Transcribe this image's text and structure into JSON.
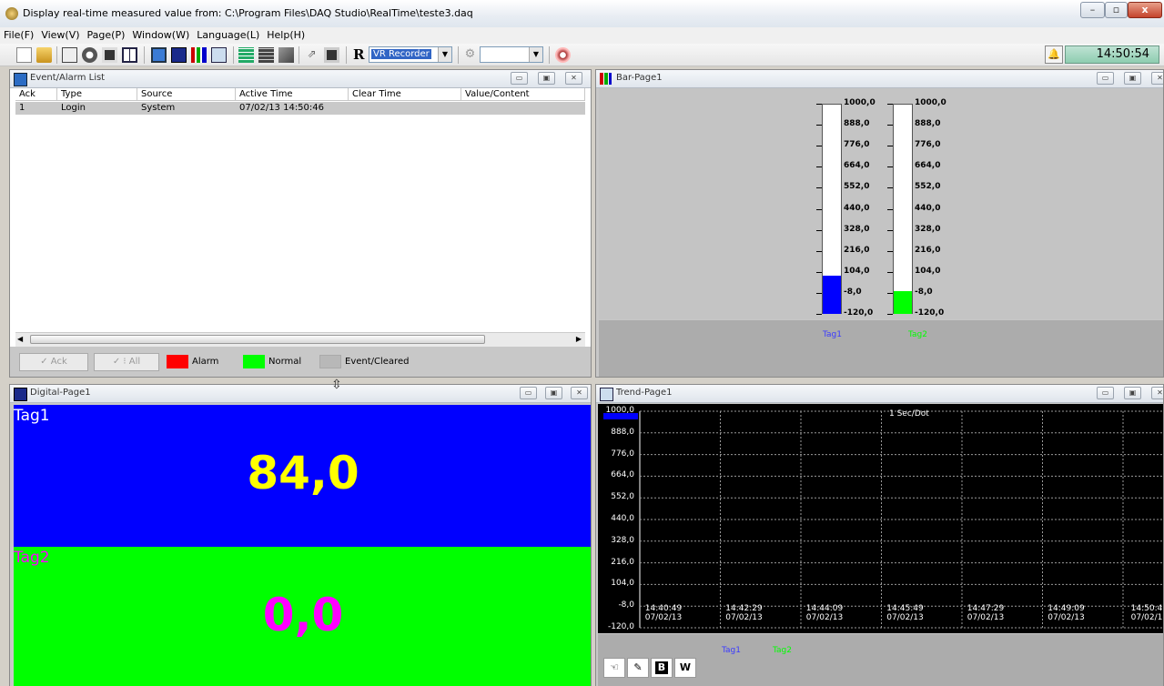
{
  "window": {
    "title": "Display real-time measured value from: C:\\Program Files\\DAQ Studio\\RealTime\\teste3.daq"
  },
  "menu": [
    "File(F)",
    "View(V)",
    "Page(P)",
    "Window(W)",
    "Language(L)",
    "Help(H)"
  ],
  "toolbar": {
    "recorder_label": "R",
    "recorder_combo": "VR Recorder",
    "second_combo": "",
    "clock": "14:50:54"
  },
  "event_list": {
    "title": "Event/Alarm List",
    "columns": [
      "Ack",
      "Type",
      "Source",
      "Active Time",
      "Clear Time",
      "Value/Content"
    ],
    "rows": [
      {
        "ack": "1",
        "type": "Login",
        "source": "System",
        "active": "07/02/13 14:50:46",
        "clear": "",
        "value": ""
      }
    ],
    "ack_button": "Ack",
    "all_button": "All",
    "legend": [
      {
        "label": "Alarm",
        "color": "#ff0000"
      },
      {
        "label": "Normal",
        "color": "#00ff00"
      },
      {
        "label": "Event/Cleared",
        "color": "#c0c0c0"
      }
    ]
  },
  "bar_page": {
    "title": "Bar-Page1",
    "scale": [
      "1000,0",
      "888,0",
      "776,0",
      "664,0",
      "552,0",
      "440,0",
      "328,0",
      "216,0",
      "104,0",
      "-8,0",
      "-120,0"
    ],
    "min": -120,
    "max": 1000,
    "tags": [
      {
        "name": "Tag1",
        "value": 84,
        "color": "#0000ff",
        "label_color": "#3a3aff"
      },
      {
        "name": "Tag2",
        "value": 0,
        "color": "#00ff00",
        "label_color": "#00ff00"
      }
    ]
  },
  "digital_page": {
    "title": "Digital-Page1",
    "tags": [
      {
        "name": "Tag1",
        "value": "84,0",
        "bg": "#0000ff",
        "name_color": "#ffffff",
        "value_color": "#ffff00"
      },
      {
        "name": "Tag2",
        "value": "0,0",
        "bg": "#00ff00",
        "name_color": "#ff00ff",
        "value_color": "#ff00ff"
      }
    ]
  },
  "trend_page": {
    "title": "Trend-Page1",
    "rate": "1 Sec/Dot",
    "y_ticks": [
      "1000,0",
      "888,0",
      "776,0",
      "664,0",
      "552,0",
      "440,0",
      "328,0",
      "216,0",
      "104,0",
      "-8,0",
      "-120,0"
    ],
    "x_ticks": [
      {
        "time": "14:40:49",
        "date": "07/02/13"
      },
      {
        "time": "14:42:29",
        "date": "07/02/13"
      },
      {
        "time": "14:44:09",
        "date": "07/02/13"
      },
      {
        "time": "14:45:49",
        "date": "07/02/13"
      },
      {
        "time": "14:47:29",
        "date": "07/02/13"
      },
      {
        "time": "14:49:09",
        "date": "07/02/13"
      },
      {
        "time": "14:50:4",
        "date": "07/02/1"
      }
    ],
    "legend": [
      "Tag1",
      "Tag2"
    ],
    "buttons": [
      "B",
      "W"
    ]
  }
}
